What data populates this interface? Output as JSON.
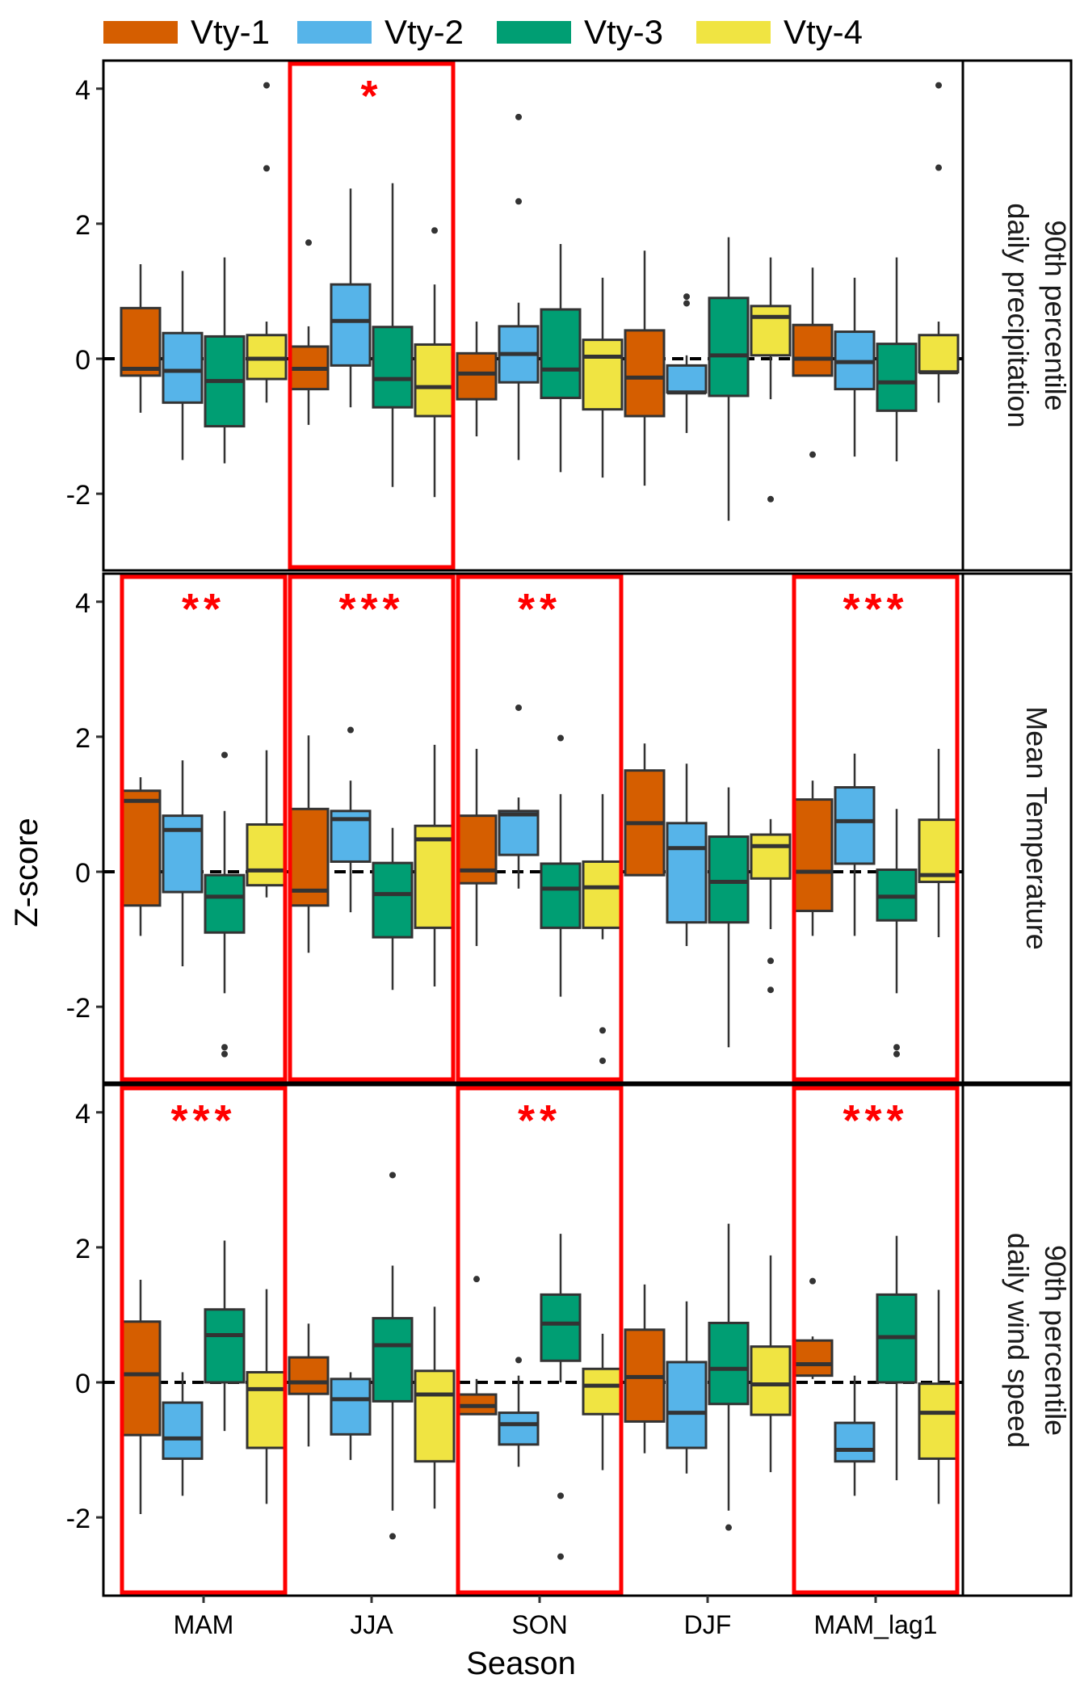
{
  "chart_data": {
    "type": "boxplot",
    "xlabel": "Season",
    "ylabel": "Z-score",
    "ylim": [
      -3.1,
      4.4
    ],
    "yticks": [
      -2,
      0,
      2,
      4
    ],
    "categories": [
      "MAM",
      "JJA",
      "SON",
      "DJF",
      "MAM_lag1"
    ],
    "legend": {
      "position": "top",
      "entries": [
        {
          "name": "Vty-1",
          "color": "#D55E00"
        },
        {
          "name": "Vty-2",
          "color": "#56B4E9"
        },
        {
          "name": "Vty-3",
          "color": "#009E73"
        },
        {
          "name": "Vty-4",
          "color": "#F0E442"
        }
      ]
    },
    "reference_line": {
      "y": 0,
      "style": "dashed"
    },
    "panels": [
      {
        "strip": [
          "90th percentile",
          "daily precipitation"
        ],
        "highlights": [
          {
            "category": "JJA",
            "stars": "*"
          }
        ],
        "boxes": [
          [
            {
              "lo": -0.8,
              "q1": -0.25,
              "med": -0.15,
              "q3": 0.75,
              "hi": 1.4,
              "out": []
            },
            {
              "lo": -1.5,
              "q1": -0.65,
              "med": -0.18,
              "q3": 0.38,
              "hi": 1.3,
              "out": []
            },
            {
              "lo": -1.55,
              "q1": -1.0,
              "med": -0.33,
              "q3": 0.33,
              "hi": 1.5,
              "out": []
            },
            {
              "lo": -0.65,
              "q1": -0.3,
              "med": 0.0,
              "q3": 0.35,
              "hi": 0.55,
              "out": [
                2.82,
                4.05
              ]
            }
          ],
          [
            {
              "lo": -0.98,
              "q1": -0.45,
              "med": -0.15,
              "q3": 0.18,
              "hi": 0.48,
              "out": [
                1.72
              ]
            },
            {
              "lo": -0.72,
              "q1": -0.1,
              "med": 0.56,
              "q3": 1.1,
              "hi": 2.52,
              "out": []
            },
            {
              "lo": -1.9,
              "q1": -0.72,
              "med": -0.3,
              "q3": 0.47,
              "hi": 2.6,
              "out": []
            },
            {
              "lo": -2.05,
              "q1": -0.85,
              "med": -0.42,
              "q3": 0.21,
              "hi": 1.1,
              "out": [
                1.9
              ]
            }
          ],
          [
            {
              "lo": -1.15,
              "q1": -0.6,
              "med": -0.22,
              "q3": 0.08,
              "hi": 0.55,
              "out": []
            },
            {
              "lo": -1.5,
              "q1": -0.35,
              "med": 0.07,
              "q3": 0.48,
              "hi": 0.83,
              "out": [
                2.33,
                3.58
              ]
            },
            {
              "lo": -1.68,
              "q1": -0.58,
              "med": -0.16,
              "q3": 0.73,
              "hi": 1.7,
              "out": []
            },
            {
              "lo": -1.76,
              "q1": -0.75,
              "med": 0.03,
              "q3": 0.28,
              "hi": 1.2,
              "out": []
            }
          ],
          [
            {
              "lo": -1.88,
              "q1": -0.85,
              "med": -0.28,
              "q3": 0.42,
              "hi": 1.6,
              "out": []
            },
            {
              "lo": -1.1,
              "q1": -0.5,
              "med": -0.5,
              "q3": -0.1,
              "hi": 0.05,
              "out": [
                0.82,
                0.92
              ]
            },
            {
              "lo": -2.4,
              "q1": -0.55,
              "med": 0.05,
              "q3": 0.9,
              "hi": 1.8,
              "out": []
            },
            {
              "lo": -0.6,
              "q1": 0.05,
              "med": 0.62,
              "q3": 0.78,
              "hi": 1.5,
              "out": [
                -2.08
              ]
            }
          ],
          [
            {
              "lo": -0.25,
              "q1": -0.25,
              "med": 0.0,
              "q3": 0.5,
              "hi": 1.35,
              "out": [
                -1.42
              ]
            },
            {
              "lo": -1.45,
              "q1": -0.45,
              "med": -0.05,
              "q3": 0.4,
              "hi": 1.2,
              "out": []
            },
            {
              "lo": -1.52,
              "q1": -0.77,
              "med": -0.35,
              "q3": 0.22,
              "hi": 1.5,
              "out": []
            },
            {
              "lo": -0.65,
              "q1": -0.2,
              "med": -0.2,
              "q3": 0.35,
              "hi": 0.55,
              "out": [
                2.83,
                4.05
              ]
            }
          ]
        ]
      },
      {
        "strip": [
          "Mean Temperature"
        ],
        "highlights": [
          {
            "category": "MAM",
            "stars": "**"
          },
          {
            "category": "JJA",
            "stars": "***"
          },
          {
            "category": "SON",
            "stars": "**"
          },
          {
            "category": "MAM_lag1",
            "stars": "***"
          }
        ],
        "boxes": [
          [
            {
              "lo": -0.95,
              "q1": -0.5,
              "med": 1.05,
              "q3": 1.2,
              "hi": 1.4,
              "out": []
            },
            {
              "lo": -1.4,
              "q1": -0.3,
              "med": 0.62,
              "q3": 0.83,
              "hi": 1.65,
              "out": []
            },
            {
              "lo": -1.8,
              "q1": -0.9,
              "med": -0.37,
              "q3": -0.05,
              "hi": 0.9,
              "out": [
                1.73,
                -2.6,
                -2.7
              ]
            },
            {
              "lo": -0.38,
              "q1": -0.2,
              "med": 0.02,
              "q3": 0.7,
              "hi": 1.8,
              "out": []
            }
          ],
          [
            {
              "lo": -1.2,
              "q1": -0.5,
              "med": -0.28,
              "q3": 0.93,
              "hi": 2.02,
              "out": []
            },
            {
              "lo": -0.6,
              "q1": 0.15,
              "med": 0.78,
              "q3": 0.9,
              "hi": 1.35,
              "out": [
                2.1
              ]
            },
            {
              "lo": -1.75,
              "q1": -0.97,
              "med": -0.33,
              "q3": 0.13,
              "hi": 0.65,
              "out": []
            },
            {
              "lo": -1.7,
              "q1": -0.83,
              "med": 0.48,
              "q3": 0.68,
              "hi": 1.88,
              "out": []
            }
          ],
          [
            {
              "lo": -1.1,
              "q1": -0.17,
              "med": 0.02,
              "q3": 0.83,
              "hi": 1.82,
              "out": []
            },
            {
              "lo": -0.25,
              "q1": 0.25,
              "med": 0.85,
              "q3": 0.9,
              "hi": 1.1,
              "out": [
                2.43
              ]
            },
            {
              "lo": -1.85,
              "q1": -0.83,
              "med": -0.25,
              "q3": 0.12,
              "hi": 1.15,
              "out": [
                1.98
              ]
            },
            {
              "lo": -1.0,
              "q1": -0.83,
              "med": -0.23,
              "q3": 0.15,
              "hi": 1.15,
              "out": [
                -2.35,
                -2.8
              ]
            }
          ],
          [
            {
              "lo": -0.05,
              "q1": -0.05,
              "med": 0.72,
              "q3": 1.5,
              "hi": 1.9,
              "out": []
            },
            {
              "lo": -1.1,
              "q1": -0.75,
              "med": 0.35,
              "q3": 0.72,
              "hi": 1.6,
              "out": []
            },
            {
              "lo": -2.6,
              "q1": -0.75,
              "med": -0.15,
              "q3": 0.52,
              "hi": 1.25,
              "out": []
            },
            {
              "lo": -0.85,
              "q1": -0.1,
              "med": 0.38,
              "q3": 0.55,
              "hi": 0.78,
              "out": [
                -1.32,
                -1.75
              ]
            }
          ],
          [
            {
              "lo": -0.95,
              "q1": -0.58,
              "med": 0.0,
              "q3": 1.07,
              "hi": 1.35,
              "out": []
            },
            {
              "lo": -0.95,
              "q1": 0.12,
              "med": 0.75,
              "q3": 1.25,
              "hi": 1.75,
              "out": []
            },
            {
              "lo": -1.8,
              "q1": -0.72,
              "med": -0.37,
              "q3": 0.03,
              "hi": 0.93,
              "out": [
                -2.6,
                -2.7
              ]
            },
            {
              "lo": -0.97,
              "q1": -0.15,
              "med": -0.05,
              "q3": 0.77,
              "hi": 1.82,
              "out": []
            }
          ]
        ]
      },
      {
        "strip": [
          "90th percentile",
          "daily wind speed"
        ],
        "highlights": [
          {
            "category": "MAM",
            "stars": "***"
          },
          {
            "category": "SON",
            "stars": "**"
          },
          {
            "category": "MAM_lag1",
            "stars": "***"
          }
        ],
        "boxes": [
          [
            {
              "lo": -1.95,
              "q1": -0.78,
              "med": 0.12,
              "q3": 0.9,
              "hi": 1.52,
              "out": []
            },
            {
              "lo": -1.68,
              "q1": -1.13,
              "med": -0.83,
              "q3": -0.3,
              "hi": 0.15,
              "out": []
            },
            {
              "lo": -0.72,
              "q1": 0.0,
              "med": 0.7,
              "q3": 1.08,
              "hi": 2.1,
              "out": []
            },
            {
              "lo": -1.8,
              "q1": -0.97,
              "med": -0.1,
              "q3": 0.15,
              "hi": 1.38,
              "out": []
            }
          ],
          [
            {
              "lo": -0.95,
              "q1": -0.17,
              "med": 0.0,
              "q3": 0.37,
              "hi": 0.87,
              "out": []
            },
            {
              "lo": -1.15,
              "q1": -0.77,
              "med": -0.25,
              "q3": 0.05,
              "hi": 0.15,
              "out": []
            },
            {
              "lo": -1.9,
              "q1": -0.28,
              "med": 0.55,
              "q3": 0.95,
              "hi": 1.73,
              "out": [
                3.07,
                -2.28
              ]
            },
            {
              "lo": -1.87,
              "q1": -1.17,
              "med": -0.18,
              "q3": 0.17,
              "hi": 1.12,
              "out": []
            }
          ],
          [
            {
              "lo": -0.47,
              "q1": -0.47,
              "med": -0.35,
              "q3": -0.18,
              "hi": 0.05,
              "out": [
                1.53
              ]
            },
            {
              "lo": -1.25,
              "q1": -0.92,
              "med": -0.62,
              "q3": -0.45,
              "hi": 0.1,
              "out": [
                0.33
              ]
            },
            {
              "lo": 0.0,
              "q1": 0.32,
              "med": 0.87,
              "q3": 1.3,
              "hi": 2.2,
              "out": [
                -1.68,
                -2.58
              ]
            },
            {
              "lo": -1.3,
              "q1": -0.47,
              "med": -0.05,
              "q3": 0.2,
              "hi": 0.72,
              "out": []
            }
          ],
          [
            {
              "lo": -1.05,
              "q1": -0.58,
              "med": 0.08,
              "q3": 0.78,
              "hi": 1.45,
              "out": []
            },
            {
              "lo": -1.35,
              "q1": -0.97,
              "med": -0.45,
              "q3": 0.3,
              "hi": 1.2,
              "out": []
            },
            {
              "lo": -1.9,
              "q1": -0.32,
              "med": 0.2,
              "q3": 0.88,
              "hi": 2.35,
              "out": [
                -2.15
              ]
            },
            {
              "lo": -1.33,
              "q1": -0.48,
              "med": -0.03,
              "q3": 0.53,
              "hi": 1.88,
              "out": []
            }
          ],
          [
            {
              "lo": 0.05,
              "q1": 0.1,
              "med": 0.27,
              "q3": 0.62,
              "hi": 0.68,
              "out": [
                1.5
              ]
            },
            {
              "lo": -1.68,
              "q1": -1.17,
              "med": -1.0,
              "q3": -0.6,
              "hi": 0.1,
              "out": []
            },
            {
              "lo": -1.45,
              "q1": 0.0,
              "med": 0.67,
              "q3": 1.3,
              "hi": 2.17,
              "out": []
            },
            {
              "lo": -1.8,
              "q1": -1.13,
              "med": -0.45,
              "q3": -0.02,
              "hi": 1.37,
              "out": []
            }
          ]
        ]
      }
    ]
  }
}
